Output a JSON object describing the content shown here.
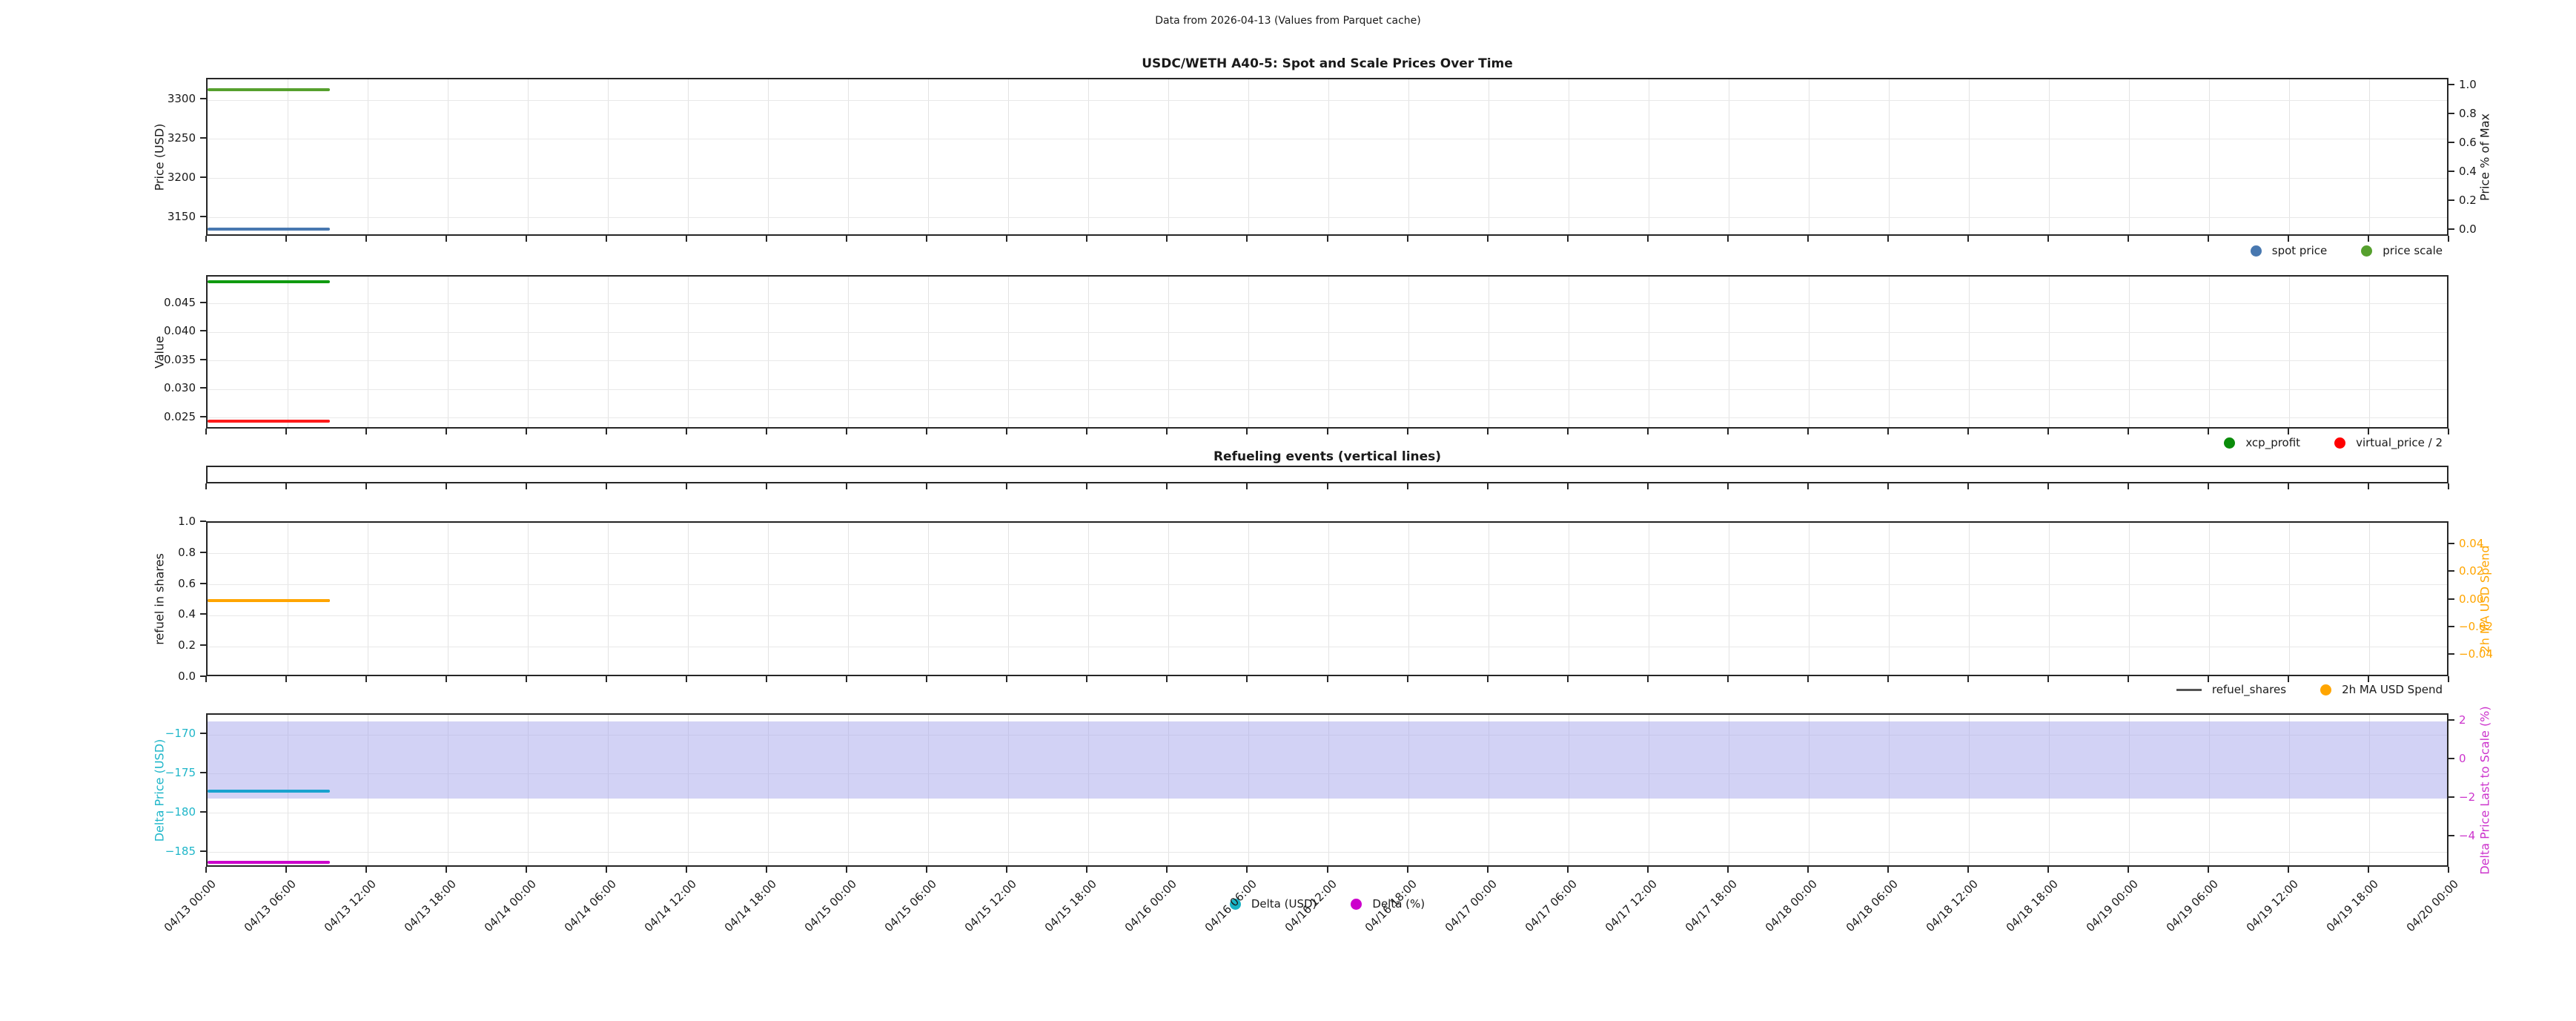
{
  "suptitle": "Data from 2026-04-13 (Values from Parquet cache)",
  "x_axis": {
    "rotation_deg": 45,
    "tick_labels": [
      "04/13 00:00",
      "04/13 06:00",
      "04/13 12:00",
      "04/13 18:00",
      "04/14 00:00",
      "04/14 06:00",
      "04/14 12:00",
      "04/14 18:00",
      "04/15 00:00",
      "04/15 06:00",
      "04/15 12:00",
      "04/15 18:00",
      "04/16 00:00",
      "04/16 06:00",
      "04/16 12:00",
      "04/16 18:00",
      "04/17 00:00",
      "04/17 06:00",
      "04/17 12:00",
      "04/17 18:00",
      "04/18 00:00",
      "04/18 06:00",
      "04/18 12:00",
      "04/18 18:00",
      "04/19 00:00",
      "04/19 06:00",
      "04/19 12:00",
      "04/19 18:00",
      "04/20 00:00"
    ]
  },
  "chart_data": [
    {
      "id": "spot-scale-prices",
      "type": "line",
      "title": "USDC/WETH A40-5: Spot and Scale Prices Over Time",
      "left_axis": {
        "label": "Price (USD)",
        "lim": [
          3125,
          3326.5
        ],
        "tick_values": [
          3300,
          3250,
          3200,
          3150
        ],
        "tick_labels": [
          "3300",
          "3250",
          "3200",
          "3150"
        ]
      },
      "right_axis": {
        "label": "Price % of Max",
        "lim": [
          -0.047,
          1.047
        ],
        "tick_values": [
          1.0,
          0.8,
          0.6,
          0.4,
          0.2,
          0.0
        ],
        "tick_labels": [
          "1.0",
          "0.8",
          "0.6",
          "0.4",
          "0.2",
          "0.0"
        ]
      },
      "series": [
        {
          "name": "spot price",
          "axis": "left",
          "value": 3135,
          "color": "#4878b0",
          "x_start_frac": 0,
          "x_end_frac": 0.0545
        },
        {
          "name": "price scale",
          "axis": "left",
          "value": 3313,
          "color": "#56a02e",
          "x_start_frac": 0,
          "x_end_frac": 0.0545
        }
      ],
      "legend": {
        "items": [
          {
            "label": "spot price",
            "marker": "dot",
            "color": "#4878b0"
          },
          {
            "label": "price scale",
            "marker": "dot",
            "color": "#56a02e"
          }
        ]
      }
    },
    {
      "id": "profit-metrics",
      "type": "line",
      "title": "",
      "left_axis": {
        "label": "Value",
        "lim": [
          0.0229,
          0.0498
        ],
        "tick_values": [
          0.045,
          0.04,
          0.035,
          0.03,
          0.025
        ],
        "tick_labels": [
          "0.045",
          "0.040",
          "0.035",
          "0.030",
          "0.025"
        ]
      },
      "series": [
        {
          "name": "xcp_profit",
          "axis": "left",
          "value": 0.0489,
          "color": "#0f9b0f",
          "x_start_frac": 0,
          "x_end_frac": 0.0545
        },
        {
          "name": "virtual_price / 2",
          "axis": "left",
          "value": 0.0244,
          "color": "#ff1a1a",
          "x_start_frac": 0,
          "x_end_frac": 0.0545
        }
      ],
      "legend": {
        "items": [
          {
            "label": "xcp_profit",
            "marker": "dot",
            "color": "#0a8c0a"
          },
          {
            "label": "virtual_price / 2",
            "marker": "dot",
            "color": "#ff0000"
          }
        ]
      }
    },
    {
      "id": "refueling-events",
      "type": "event-strip",
      "title": "Refueling events (vertical lines)",
      "events": []
    },
    {
      "id": "refuel-shares",
      "type": "line",
      "title": "",
      "left_axis": {
        "label": "refuel in shares",
        "lim": [
          0,
          1
        ],
        "tick_values": [
          1.0,
          0.8,
          0.6,
          0.4,
          0.2,
          0.0
        ],
        "tick_labels": [
          "1.0",
          "0.8",
          "0.6",
          "0.4",
          "0.2",
          "0.0"
        ]
      },
      "right_axis": {
        "label": "2h MA USD Spend",
        "color": "#ffa500",
        "lim": [
          -0.0563,
          0.0563
        ],
        "tick_values": [
          0.04,
          0.02,
          0.0,
          -0.02,
          -0.04
        ],
        "tick_labels": [
          "0.04",
          "0.02",
          "0.00",
          "−0.02",
          "−0.04"
        ]
      },
      "series": [
        {
          "name": "refuel_shares",
          "axis": "left",
          "value": 0.5,
          "color": "#555555",
          "x_start_frac": 0,
          "x_end_frac": 0.0545
        },
        {
          "name": "2h MA USD Spend",
          "axis": "right",
          "value": 0.0,
          "color": "#ffa500",
          "x_start_frac": 0,
          "x_end_frac": 0.0545
        }
      ],
      "legend": {
        "items": [
          {
            "label": "refuel_shares",
            "marker": "line",
            "color": "#555555"
          },
          {
            "label": "2h MA USD Spend",
            "marker": "dot",
            "color": "#ffa500"
          }
        ]
      }
    },
    {
      "id": "delta-price",
      "type": "line",
      "title": "",
      "left_axis": {
        "label": "Delta Price (USD)",
        "color": "#1fb6c9",
        "lim": [
          -187.0,
          -167.45
        ],
        "tick_values": [
          -170,
          -175,
          -180,
          -185
        ],
        "tick_labels": [
          "−170",
          "−175",
          "−180",
          "−185"
        ]
      },
      "right_axis": {
        "label": "Delta Price Last to Scale (%)",
        "color": "#cc33cc",
        "lim": [
          -5.61,
          2.35
        ],
        "tick_values": [
          2,
          0,
          -2,
          -4
        ],
        "tick_labels": [
          "2",
          "0",
          "−2",
          "−4"
        ]
      },
      "band": {
        "name": "plus-minus-2pct-band",
        "axis": "right",
        "from": -2,
        "to": 2,
        "color": "#a5a5eb",
        "opacity": 0.5
      },
      "series": [
        {
          "name": "Delta (USD)",
          "axis": "left",
          "value": -177.2,
          "color": "#18a2cf",
          "x_start_frac": 0,
          "x_end_frac": 0.0545
        },
        {
          "name": "Delta (%)",
          "axis": "right",
          "value": -5.3,
          "color": "#cc00cc",
          "x_start_frac": 0,
          "x_end_frac": 0.0545
        }
      ],
      "legend": {
        "items": [
          {
            "label": "Delta (USD)",
            "marker": "dot",
            "color": "#17b2c4"
          },
          {
            "label": "Delta (%)",
            "marker": "dot",
            "color": "#cc00cc"
          }
        ]
      }
    }
  ]
}
